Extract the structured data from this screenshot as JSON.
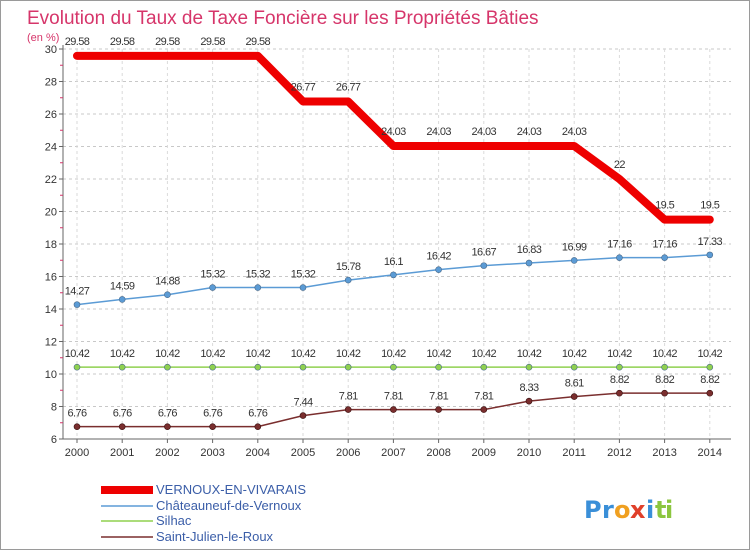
{
  "chart_data": {
    "type": "line",
    "title": "Evolution du Taux de Taxe Foncière sur les Propriétés Bâties",
    "subtitle": "(en %)",
    "xlabel": "",
    "ylabel": "",
    "ylim": [
      6,
      30
    ],
    "yticks": [
      6,
      8,
      10,
      12,
      14,
      16,
      18,
      20,
      22,
      24,
      26,
      28,
      30
    ],
    "categories": [
      "2000",
      "2001",
      "2002",
      "2003",
      "2004",
      "2005",
      "2006",
      "2007",
      "2008",
      "2009",
      "2010",
      "2011",
      "2012",
      "2013",
      "2014"
    ],
    "legend_position": "bottom-left",
    "series": [
      {
        "name": "VERNOUX-EN-VIVARAIS",
        "color": "#ee0000",
        "values": [
          29.58,
          29.58,
          29.58,
          29.58,
          29.58,
          26.77,
          26.77,
          24.03,
          24.03,
          24.03,
          24.03,
          24.03,
          22,
          19.5,
          19.5
        ],
        "labels": [
          "29.58",
          "29.58",
          "29.58",
          "29.58",
          "29.58",
          "26.77",
          "26.77",
          "24.03",
          "24.03",
          "24.03",
          "24.03",
          "24.03",
          "22",
          "19.5",
          "19.5"
        ]
      },
      {
        "name": "Châteauneuf-de-Vernoux",
        "color": "#5b9bd5",
        "values": [
          14.27,
          14.59,
          14.88,
          15.32,
          15.32,
          15.32,
          15.78,
          16.1,
          16.42,
          16.67,
          16.83,
          16.99,
          17.16,
          17.16,
          17.33
        ],
        "labels": [
          "14.27",
          "14.59",
          "14.88",
          "15.32",
          "15.32",
          "15.32",
          "15.78",
          "16.1",
          "16.42",
          "16.67",
          "16.83",
          "16.99",
          "17.16",
          "17.16",
          "17.33"
        ]
      },
      {
        "name": "Silhac",
        "color": "#8fd14f",
        "values": [
          10.42,
          10.42,
          10.42,
          10.42,
          10.42,
          10.42,
          10.42,
          10.42,
          10.42,
          10.42,
          10.42,
          10.42,
          10.42,
          10.42,
          10.42
        ],
        "labels": [
          "10.42",
          "10.42",
          "10.42",
          "10.42",
          "10.42",
          "10.42",
          "10.42",
          "10.42",
          "10.42",
          "10.42",
          "10.42",
          "10.42",
          "10.42",
          "10.42",
          "10.42"
        ]
      },
      {
        "name": "Saint-Julien-le-Roux",
        "color": "#7a2e2e",
        "values": [
          6.76,
          6.76,
          6.76,
          6.76,
          6.76,
          7.44,
          7.81,
          7.81,
          7.81,
          7.81,
          8.33,
          8.61,
          8.82,
          8.82,
          8.82
        ],
        "labels": [
          "6.76",
          "6.76",
          "6.76",
          "6.76",
          "6.76",
          "7.44",
          "7.81",
          "7.81",
          "7.81",
          "7.81",
          "8.33",
          "8.61",
          "8.82",
          "8.82",
          "8.82"
        ]
      }
    ]
  },
  "branding": {
    "logo_text": "Proxiti",
    "logo_letters": [
      "P",
      "r",
      "o",
      "x",
      "i",
      "t",
      "i"
    ],
    "logo_colors": [
      "#3a8fd8",
      "#3a8fd8",
      "#f0a020",
      "#e0402a",
      "#3a8fd8",
      "#8cc63f",
      "#8cc63f"
    ]
  }
}
